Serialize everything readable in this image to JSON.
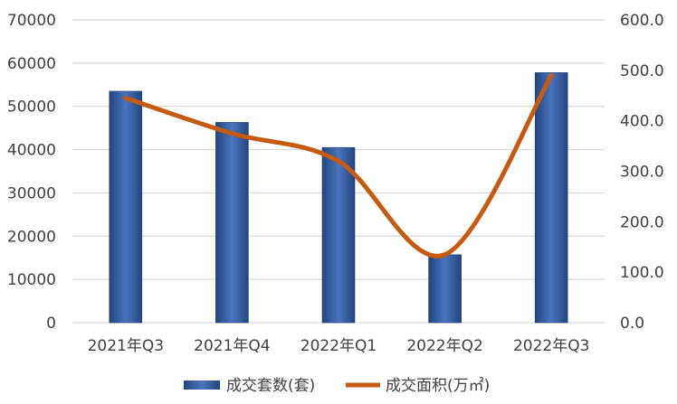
{
  "chart_data": {
    "type": "bar+line",
    "categories": [
      "2021年Q3",
      "2021年Q4",
      "2022年Q1",
      "2022年Q2",
      "2022年Q3"
    ],
    "series": [
      {
        "name": "成交套数(套)",
        "type": "bar",
        "axis": "left",
        "values": [
          53500,
          46300,
          40500,
          15700,
          57800
        ],
        "color": "#2E5499"
      },
      {
        "name": "成交面积(万㎡)",
        "type": "line",
        "axis": "right",
        "smooth": true,
        "values": [
          445,
          375,
          320,
          135,
          490
        ],
        "color": "#C55A11"
      }
    ],
    "left_axis": {
      "min": 0,
      "max": 70000,
      "step": 10000,
      "tick_labels": [
        "0",
        "10000",
        "20000",
        "30000",
        "40000",
        "50000",
        "60000",
        "70000"
      ]
    },
    "right_axis": {
      "min": 0,
      "max": 600,
      "step": 100,
      "tick_labels": [
        "0.0",
        "100.0",
        "200.0",
        "300.0",
        "400.0",
        "500.0",
        "600.0"
      ]
    },
    "grid": true,
    "legend": "bottom"
  }
}
